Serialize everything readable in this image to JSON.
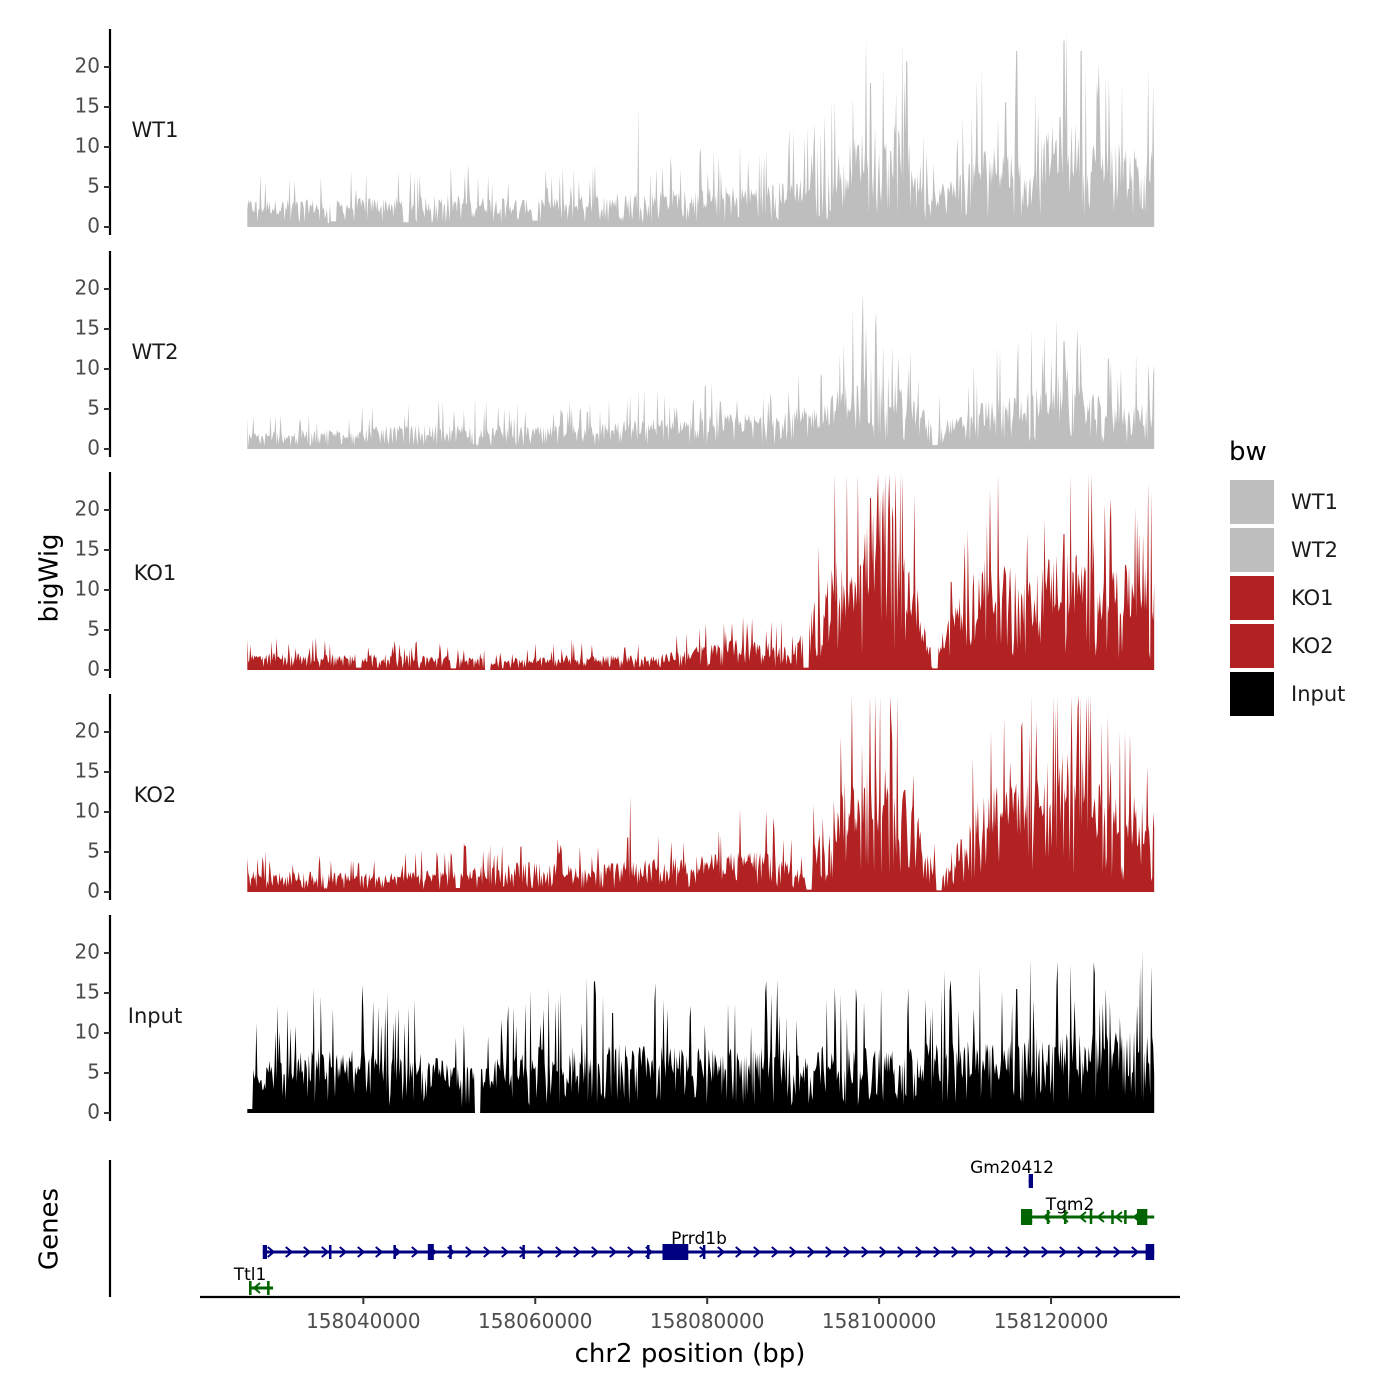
{
  "chart_data": {
    "type": "area",
    "description_axis": {
      "ylabel": "bigWig",
      "genes_label": "Genes",
      "xlabel": "chr2 position (bp)",
      "xlim": [
        158021000,
        158135000
      ],
      "xticks": [
        158040000,
        158060000,
        158080000,
        158100000,
        158120000
      ],
      "xtick_labels": [
        "158040000",
        "158060000",
        "158080000",
        "158100000",
        "158120000"
      ],
      "ylim": [
        0,
        24.5
      ],
      "yticks": [
        0,
        5,
        10,
        15,
        20
      ],
      "ytick_labels": [
        "0",
        "5",
        "10",
        "15",
        "20"
      ]
    },
    "signal_range": [
      158026500,
      158132000
    ],
    "tracks": [
      {
        "name": "WT1",
        "color": "#bebebe",
        "profile": [
          [
            158026500,
            2.5
          ],
          [
            158036000,
            2.5
          ],
          [
            158050000,
            3.0
          ],
          [
            158060000,
            2.5
          ],
          [
            158070000,
            3.2
          ],
          [
            158080000,
            3.6
          ],
          [
            158087000,
            4.0
          ],
          [
            158093000,
            5.0
          ],
          [
            158097000,
            8.0
          ],
          [
            158100000,
            10.5
          ],
          [
            158103000,
            8.5
          ],
          [
            158106000,
            4.0
          ],
          [
            158109000,
            4.5
          ],
          [
            158111000,
            7.0
          ],
          [
            158114000,
            7.5
          ],
          [
            158117000,
            6.5
          ],
          [
            158120000,
            9.0
          ],
          [
            158122000,
            11.0
          ],
          [
            158124000,
            7.5
          ],
          [
            158127000,
            8.0
          ],
          [
            158132000,
            7.0
          ]
        ],
        "dips": [
          [
            158036500,
            0.7
          ],
          [
            158045000,
            0.6
          ],
          [
            158060000,
            0.8
          ]
        ],
        "peaks": [
          [
            158099000,
            18
          ],
          [
            158100500,
            20
          ],
          [
            158102000,
            17
          ],
          [
            158121500,
            23.3
          ],
          [
            158123500,
            22
          ],
          [
            158112000,
            20
          ],
          [
            158116000,
            22
          ],
          [
            158090000,
            12
          ],
          [
            158072000,
            15
          ]
        ]
      },
      {
        "name": "WT2",
        "color": "#bebebe",
        "profile": [
          [
            158026500,
            1.5
          ],
          [
            158040000,
            2.0
          ],
          [
            158050000,
            2.3
          ],
          [
            158060000,
            2.0
          ],
          [
            158070000,
            2.6
          ],
          [
            158080000,
            3.0
          ],
          [
            158088000,
            3.4
          ],
          [
            158093000,
            4.0
          ],
          [
            158097000,
            6.5
          ],
          [
            158099000,
            8.0
          ],
          [
            158102000,
            6.0
          ],
          [
            158106000,
            3.0
          ],
          [
            158109000,
            2.8
          ],
          [
            158112000,
            4.5
          ],
          [
            158116000,
            5.0
          ],
          [
            158120000,
            6.0
          ],
          [
            158122000,
            8.0
          ],
          [
            158124000,
            5.0
          ],
          [
            158128000,
            4.5
          ],
          [
            158132000,
            4.0
          ]
        ],
        "dips": [
          [
            158053000,
            0.6
          ],
          [
            158106500,
            0.5
          ]
        ],
        "peaks": [
          [
            158098000,
            16
          ],
          [
            158099500,
            15
          ],
          [
            158101500,
            13
          ],
          [
            158121500,
            13.5
          ],
          [
            158119000,
            12
          ],
          [
            158127000,
            11
          ],
          [
            158132000,
            10.5
          ],
          [
            158053000,
            6.5
          ]
        ]
      },
      {
        "name": "KO1",
        "color": "#b22222",
        "profile": [
          [
            158026500,
            1.5
          ],
          [
            158040000,
            1.5
          ],
          [
            158052000,
            1.2
          ],
          [
            158056000,
            1.0
          ],
          [
            158066000,
            1.5
          ],
          [
            158074000,
            1.3
          ],
          [
            158079000,
            2.2
          ],
          [
            158085000,
            3.0
          ],
          [
            158090000,
            2.0
          ],
          [
            158093000,
            7.0
          ],
          [
            158095000,
            10.0
          ],
          [
            158098000,
            12.0
          ],
          [
            158100000,
            16.0
          ],
          [
            158102000,
            14.0
          ],
          [
            158104000,
            9.0
          ],
          [
            158106000,
            2.0
          ],
          [
            158107000,
            2.5
          ],
          [
            158109000,
            7.0
          ],
          [
            158111000,
            9.0
          ],
          [
            158113000,
            11.0
          ],
          [
            158115000,
            10.0
          ],
          [
            158117000,
            7.5
          ],
          [
            158119000,
            10.0
          ],
          [
            158121000,
            11.0
          ],
          [
            158124000,
            10.5
          ],
          [
            158128000,
            9.5
          ],
          [
            158132000,
            9.0
          ]
        ],
        "dips": [
          [
            158054500,
            0.0
          ],
          [
            158091500,
            0.3
          ],
          [
            158106500,
            0.2
          ],
          [
            158039500,
            0.3
          ],
          [
            158050500,
            0.2
          ]
        ],
        "peaks": [
          [
            158100500,
            22.8
          ],
          [
            158101500,
            20.5
          ],
          [
            158099000,
            21.5
          ],
          [
            158112500,
            18.5
          ],
          [
            158121500,
            17.0
          ],
          [
            158125000,
            16.5
          ],
          [
            158110000,
            16.0
          ],
          [
            158093000,
            15.5
          ]
        ]
      },
      {
        "name": "KO2",
        "color": "#b22222",
        "profile": [
          [
            158026500,
            2.0
          ],
          [
            158040000,
            1.7
          ],
          [
            158050000,
            2.0
          ],
          [
            158058000,
            2.8
          ],
          [
            158066000,
            2.4
          ],
          [
            158074000,
            3.0
          ],
          [
            158080000,
            3.4
          ],
          [
            158087000,
            4.0
          ],
          [
            158091000,
            2.2
          ],
          [
            158094000,
            8.0
          ],
          [
            158097000,
            11.0
          ],
          [
            158100000,
            12.5
          ],
          [
            158103000,
            9.5
          ],
          [
            158105000,
            6.0
          ],
          [
            158107000,
            1.5
          ],
          [
            158109000,
            4.5
          ],
          [
            158112000,
            9.0
          ],
          [
            158115000,
            12.0
          ],
          [
            158118000,
            10.0
          ],
          [
            158120000,
            14.0
          ],
          [
            158122000,
            13.5
          ],
          [
            158125000,
            11.0
          ],
          [
            158128000,
            9.5
          ],
          [
            158132000,
            7.5
          ]
        ],
        "dips": [
          [
            158091800,
            0.3
          ],
          [
            158107000,
            0.2
          ],
          [
            158051000,
            0.5
          ]
        ],
        "peaks": [
          [
            158120500,
            23.0
          ],
          [
            158101500,
            19.0
          ],
          [
            158098000,
            18.5
          ],
          [
            158113000,
            20.0
          ],
          [
            158116500,
            20.5
          ],
          [
            158124000,
            18.0
          ],
          [
            158127000,
            16.5
          ],
          [
            158071000,
            12.0
          ]
        ]
      },
      {
        "name": "Input",
        "color": "#000000",
        "profile": [
          [
            158026500,
            4.0
          ],
          [
            158034000,
            6.0
          ],
          [
            158046000,
            5.5
          ],
          [
            158053000,
            4.0
          ],
          [
            158054000,
            4.5
          ],
          [
            158060000,
            6.0
          ],
          [
            158070000,
            6.2
          ],
          [
            158080000,
            5.8
          ],
          [
            158090000,
            6.0
          ],
          [
            158100000,
            6.0
          ],
          [
            158110000,
            6.5
          ],
          [
            158120000,
            7.0
          ],
          [
            158128000,
            7.5
          ],
          [
            158132000,
            7.5
          ]
        ],
        "dips": [
          [
            158053300,
            0.0
          ],
          [
            158026800,
            0.5
          ]
        ],
        "peaks": [
          [
            158116000,
            15.5
          ],
          [
            158061000,
            13.0
          ],
          [
            158069000,
            12.5
          ],
          [
            158030000,
            13.5
          ],
          [
            158130000,
            13.5
          ],
          [
            158111000,
            13.0
          ],
          [
            158087000,
            11.5
          ],
          [
            158128000,
            12.0
          ]
        ]
      }
    ],
    "legend": {
      "title": "bw",
      "placement": "right",
      "entries": [
        {
          "label": "WT1",
          "color": "#bebebe"
        },
        {
          "label": "WT2",
          "color": "#bebebe"
        },
        {
          "label": "KO1",
          "color": "#b22222"
        },
        {
          "label": "KO2",
          "color": "#b22222"
        },
        {
          "label": "Input",
          "color": "#000000"
        }
      ]
    },
    "genes": [
      {
        "name": "Ttl1",
        "strand": "-",
        "color": "#006400",
        "start": 158026700,
        "end": 158029500,
        "lane": 0,
        "exons": [
          [
            158026700,
            158027000
          ],
          [
            158028800,
            158029100
          ]
        ]
      },
      {
        "name": "Prrd1b",
        "strand": "+",
        "color": "#000080",
        "start": 158028300,
        "end": 158132000,
        "lane": 1,
        "exons": [
          [
            158028300,
            158028800
          ],
          [
            158036000,
            158036200
          ],
          [
            158043500,
            158043700
          ],
          [
            158047500,
            158048200
          ],
          [
            158050000,
            158050200
          ],
          [
            158058500,
            158058700
          ],
          [
            158073000,
            158073200
          ],
          [
            158074800,
            158077800
          ],
          [
            158079500,
            158079700
          ],
          [
            158131000,
            158132000
          ]
        ]
      },
      {
        "name": "Tgm2",
        "strand": "-",
        "color": "#006400",
        "start": 158116500,
        "end": 158132000,
        "lane": 2,
        "exons": [
          [
            158116500,
            158117800
          ],
          [
            158119500,
            158119700
          ],
          [
            158121500,
            158121700
          ],
          [
            158124500,
            158124700
          ],
          [
            158127000,
            158127200
          ],
          [
            158128500,
            158128700
          ],
          [
            158130000,
            158131200
          ]
        ]
      },
      {
        "name": "Gm20412",
        "strand": "+",
        "color": "#000080",
        "start": 158117400,
        "end": 158117900,
        "lane": 3,
        "exons": [
          [
            158117400,
            158117900
          ]
        ]
      }
    ]
  }
}
